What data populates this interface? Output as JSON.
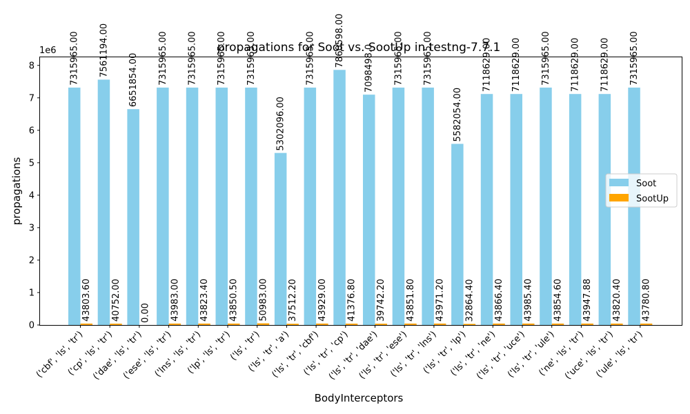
{
  "chart_data": {
    "type": "bar",
    "title": "propagations for Soot vs. SootUp in testng-7.7.1",
    "xlabel": "BodyInterceptors",
    "ylabel": "propagations",
    "y_multiplier_label": "1e6",
    "ylim": [
      0,
      8250000
    ],
    "yticks": [
      0,
      1,
      2,
      3,
      4,
      5,
      6,
      7,
      8
    ],
    "grid": false,
    "legend_position": "center-right",
    "colors": {
      "Soot": "#87CEEB",
      "SootUp": "#FFA500"
    },
    "categories": [
      "('cbf', 'ls', 'tr')",
      "('cp', 'ls', 'tr')",
      "('dae', 'ls', 'tr')",
      "('ese', 'ls', 'tr')",
      "('lns', 'ls', 'tr')",
      "('lp', 'ls', 'tr')",
      "('ls', 'tr')",
      "('ls', 'tr', 'a')",
      "('ls', 'tr', 'cbf')",
      "('ls', 'tr', 'cp')",
      "('ls', 'tr', 'dae')",
      "('ls', 'tr', 'ese')",
      "('ls', 'tr', 'lns')",
      "('ls', 'tr', 'lp')",
      "('ls', 'tr', 'ne')",
      "('ls', 'tr', 'uce')",
      "('ls', 'tr', 'ule')",
      "('ne', 'ls', 'tr')",
      "('uce', 'ls', 'tr')",
      "('ule', 'ls', 'tr')"
    ],
    "series": [
      {
        "name": "Soot",
        "values": [
          7315965,
          7561194,
          6651854,
          7315965,
          7315965,
          7315965,
          7315965,
          5302096,
          7315965,
          7860598,
          7098498,
          7315965,
          7315965,
          5582054,
          7118629,
          7118629,
          7315965,
          7118629,
          7118629,
          7315965
        ],
        "labels": [
          "7315965.00",
          "7561194.00",
          "6651854.00",
          "7315965.00",
          "7315965.00",
          "7315965.00",
          "7315965.00",
          "5302096.00",
          "7315965.00",
          "7860598.00",
          "7098498.0",
          "7315965.00",
          "7315965.00",
          "5582054.00",
          "7118629.00",
          "7118629.00",
          "7315965.00",
          "7118629.00",
          "7118629.00",
          "7315965.00"
        ]
      },
      {
        "name": "SootUp",
        "values": [
          43803.6,
          40752.0,
          0.0,
          43983.0,
          43823.4,
          43850.5,
          50983.0,
          37512.2,
          43929.0,
          41376.8,
          39742.2,
          43851.8,
          43971.2,
          32864.4,
          43866.4,
          43985.4,
          43854.6,
          43947.88,
          43820.4,
          43780.8
        ],
        "labels": [
          "43803.60",
          "40752.00",
          "0.00",
          "43983.00",
          "43823.40",
          "43850.50",
          "50983.00",
          "37512.20",
          "43929.00",
          "41376.80",
          "39742.20",
          "43851.80",
          "43971.20",
          "32864.40",
          "43866.40",
          "43985.40",
          "43854.60",
          "43947.88",
          "43820.40",
          "43780.80"
        ]
      }
    ]
  }
}
